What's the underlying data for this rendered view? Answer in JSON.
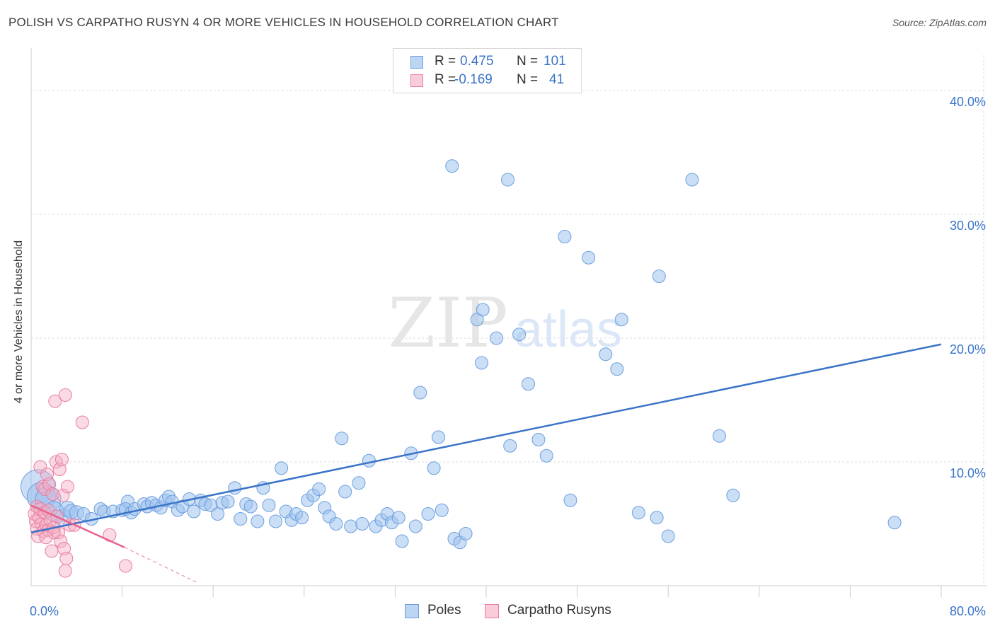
{
  "header": {
    "title": "POLISH VS CARPATHO RUSYN 4 OR MORE VEHICLES IN HOUSEHOLD CORRELATION CHART",
    "source": "Source: ZipAtlas.com"
  },
  "colors": {
    "poles": "#9fc3ee",
    "poles_edge": "#6d9fde",
    "poles_line": "#3a74c8",
    "rusyn": "#f4aec4",
    "rusyn_edge": "#e87ea1",
    "rusyn_line": "#e8628c",
    "value_text": "#3a74c8",
    "grid": "#dddddd"
  },
  "stats": {
    "poles": {
      "r_label": "R =",
      "r_value": "0.475",
      "n_label": "N =",
      "n_value": "101"
    },
    "rusyn": {
      "r_label": "R =",
      "r_value": "-0.169",
      "n_label": "N =",
      "n_value": "41"
    }
  },
  "legend": {
    "poles": "Poles",
    "rusyn": "Carpatho Rusyns"
  },
  "chart_data": {
    "type": "scatter",
    "title": "POLISH VS CARPATHO RUSYN 4 OR MORE VEHICLES IN HOUSEHOLD CORRELATION CHART",
    "xlabel": "",
    "ylabel": "4 or more Vehicles in Household",
    "xlim": [
      0,
      80
    ],
    "ylim": [
      0,
      42
    ],
    "x_tick_labels": [
      "0.0%",
      "80.0%"
    ],
    "y_ticks": [
      10,
      20,
      30,
      40
    ],
    "y_tick_labels": [
      "10.0%",
      "20.0%",
      "30.0%",
      "40.0%"
    ],
    "watermark": {
      "zip": "ZIP",
      "atlas": "atlas"
    },
    "series": [
      {
        "name": "Poles",
        "trend": {
          "x": [
            0,
            80
          ],
          "y": [
            4.3,
            19.5
          ]
        },
        "points": [
          {
            "x": 0.6,
            "y": 8.0,
            "s": 24
          },
          {
            "x": 0.9,
            "y": 7.2,
            "s": 20
          },
          {
            "x": 1.5,
            "y": 7.0,
            "s": 18
          },
          {
            "x": 2.0,
            "y": 6.0,
            "s": 14
          },
          {
            "x": 2.8,
            "y": 5.5,
            "s": 12
          },
          {
            "x": 3.2,
            "y": 6.2,
            "s": 11
          },
          {
            "x": 3.5,
            "y": 6.0,
            "s": 10
          },
          {
            "x": 4.0,
            "y": 5.9,
            "s": 10
          },
          {
            "x": 4.6,
            "y": 5.8,
            "s": 9
          },
          {
            "x": 5.3,
            "y": 5.4,
            "s": 9
          },
          {
            "x": 6.1,
            "y": 6.2,
            "s": 9
          },
          {
            "x": 6.4,
            "y": 6.0,
            "s": 9
          },
          {
            "x": 7.2,
            "y": 6.0,
            "s": 9
          },
          {
            "x": 8.0,
            "y": 6.1,
            "s": 9
          },
          {
            "x": 8.5,
            "y": 6.8,
            "s": 9
          },
          {
            "x": 8.3,
            "y": 6.2,
            "s": 9
          },
          {
            "x": 8.8,
            "y": 5.9,
            "s": 9
          },
          {
            "x": 9.1,
            "y": 6.2,
            "s": 9
          },
          {
            "x": 9.9,
            "y": 6.6,
            "s": 9
          },
          {
            "x": 10.2,
            "y": 6.4,
            "s": 9
          },
          {
            "x": 10.6,
            "y": 6.7,
            "s": 9
          },
          {
            "x": 11.0,
            "y": 6.5,
            "s": 9
          },
          {
            "x": 11.4,
            "y": 6.3,
            "s": 9
          },
          {
            "x": 11.8,
            "y": 6.9,
            "s": 9
          },
          {
            "x": 12.1,
            "y": 7.2,
            "s": 9
          },
          {
            "x": 12.4,
            "y": 6.8,
            "s": 9
          },
          {
            "x": 12.9,
            "y": 6.1,
            "s": 9
          },
          {
            "x": 13.3,
            "y": 6.4,
            "s": 9
          },
          {
            "x": 13.9,
            "y": 7.0,
            "s": 9
          },
          {
            "x": 14.3,
            "y": 6.0,
            "s": 9
          },
          {
            "x": 14.9,
            "y": 6.9,
            "s": 9
          },
          {
            "x": 15.3,
            "y": 6.6,
            "s": 9
          },
          {
            "x": 15.8,
            "y": 6.5,
            "s": 9
          },
          {
            "x": 16.4,
            "y": 5.8,
            "s": 9
          },
          {
            "x": 16.8,
            "y": 6.7,
            "s": 9
          },
          {
            "x": 17.3,
            "y": 6.8,
            "s": 9
          },
          {
            "x": 17.9,
            "y": 7.9,
            "s": 9
          },
          {
            "x": 18.4,
            "y": 5.4,
            "s": 9
          },
          {
            "x": 18.9,
            "y": 6.6,
            "s": 9
          },
          {
            "x": 19.3,
            "y": 6.4,
            "s": 9
          },
          {
            "x": 19.9,
            "y": 5.2,
            "s": 9
          },
          {
            "x": 20.4,
            "y": 7.9,
            "s": 9
          },
          {
            "x": 20.9,
            "y": 6.5,
            "s": 9
          },
          {
            "x": 21.5,
            "y": 5.2,
            "s": 9
          },
          {
            "x": 22.0,
            "y": 9.5,
            "s": 9
          },
          {
            "x": 22.4,
            "y": 6.0,
            "s": 9
          },
          {
            "x": 22.9,
            "y": 5.3,
            "s": 9
          },
          {
            "x": 23.3,
            "y": 5.8,
            "s": 9
          },
          {
            "x": 23.8,
            "y": 5.5,
            "s": 9
          },
          {
            "x": 24.3,
            "y": 6.9,
            "s": 9
          },
          {
            "x": 24.8,
            "y": 7.3,
            "s": 9
          },
          {
            "x": 25.3,
            "y": 7.8,
            "s": 9
          },
          {
            "x": 25.8,
            "y": 6.3,
            "s": 9
          },
          {
            "x": 26.2,
            "y": 5.6,
            "s": 9
          },
          {
            "x": 26.8,
            "y": 5.0,
            "s": 9
          },
          {
            "x": 27.3,
            "y": 11.9,
            "s": 9
          },
          {
            "x": 27.6,
            "y": 7.6,
            "s": 9
          },
          {
            "x": 28.1,
            "y": 4.8,
            "s": 9
          },
          {
            "x": 28.8,
            "y": 8.3,
            "s": 9
          },
          {
            "x": 29.1,
            "y": 5.0,
            "s": 9
          },
          {
            "x": 29.7,
            "y": 10.1,
            "s": 9
          },
          {
            "x": 30.3,
            "y": 4.8,
            "s": 9
          },
          {
            "x": 30.8,
            "y": 5.3,
            "s": 9
          },
          {
            "x": 31.3,
            "y": 5.8,
            "s": 9
          },
          {
            "x": 31.7,
            "y": 5.1,
            "s": 9
          },
          {
            "x": 32.3,
            "y": 5.5,
            "s": 9
          },
          {
            "x": 32.6,
            "y": 3.6,
            "s": 9
          },
          {
            "x": 33.4,
            "y": 10.7,
            "s": 9
          },
          {
            "x": 33.8,
            "y": 4.8,
            "s": 9
          },
          {
            "x": 34.2,
            "y": 15.6,
            "s": 9
          },
          {
            "x": 34.9,
            "y": 5.8,
            "s": 9
          },
          {
            "x": 35.4,
            "y": 9.5,
            "s": 9
          },
          {
            "x": 35.8,
            "y": 12.0,
            "s": 9
          },
          {
            "x": 36.1,
            "y": 6.1,
            "s": 9
          },
          {
            "x": 37.2,
            "y": 3.8,
            "s": 9
          },
          {
            "x": 37.7,
            "y": 3.5,
            "s": 9
          },
          {
            "x": 38.2,
            "y": 4.2,
            "s": 9
          },
          {
            "x": 37.0,
            "y": 33.9,
            "s": 9
          },
          {
            "x": 39.2,
            "y": 21.5,
            "s": 9
          },
          {
            "x": 39.7,
            "y": 22.3,
            "s": 9
          },
          {
            "x": 39.6,
            "y": 18.0,
            "s": 9
          },
          {
            "x": 40.9,
            "y": 20.0,
            "s": 9
          },
          {
            "x": 42.1,
            "y": 11.3,
            "s": 9
          },
          {
            "x": 42.9,
            "y": 20.3,
            "s": 9
          },
          {
            "x": 41.9,
            "y": 32.8,
            "s": 9
          },
          {
            "x": 43.7,
            "y": 16.3,
            "s": 9
          },
          {
            "x": 44.6,
            "y": 11.8,
            "s": 9
          },
          {
            "x": 45.3,
            "y": 10.5,
            "s": 9
          },
          {
            "x": 46.9,
            "y": 28.2,
            "s": 9
          },
          {
            "x": 47.4,
            "y": 6.9,
            "s": 9
          },
          {
            "x": 49.0,
            "y": 26.5,
            "s": 9
          },
          {
            "x": 50.5,
            "y": 18.7,
            "s": 9
          },
          {
            "x": 51.5,
            "y": 17.5,
            "s": 9
          },
          {
            "x": 51.9,
            "y": 21.5,
            "s": 9
          },
          {
            "x": 53.4,
            "y": 5.9,
            "s": 9
          },
          {
            "x": 55.2,
            "y": 25.0,
            "s": 9
          },
          {
            "x": 55.0,
            "y": 5.5,
            "s": 9
          },
          {
            "x": 56.0,
            "y": 4.0,
            "s": 9
          },
          {
            "x": 58.1,
            "y": 32.8,
            "s": 9
          },
          {
            "x": 60.5,
            "y": 12.1,
            "s": 9
          },
          {
            "x": 61.7,
            "y": 7.3,
            "s": 9
          },
          {
            "x": 75.9,
            "y": 5.1,
            "s": 9
          }
        ]
      },
      {
        "name": "Carpatho Rusyns",
        "trend": {
          "x": [
            0,
            8.2
          ],
          "y": [
            6.5,
            3.1
          ]
        },
        "trend_dashed": {
          "x": [
            8.2,
            14.5
          ],
          "y": [
            3.1,
            0.3
          ]
        },
        "points": [
          {
            "x": 0.3,
            "y": 5.8,
            "s": 9
          },
          {
            "x": 0.4,
            "y": 5.2,
            "s": 9
          },
          {
            "x": 0.5,
            "y": 4.6,
            "s": 9
          },
          {
            "x": 0.5,
            "y": 6.4,
            "s": 9
          },
          {
            "x": 0.6,
            "y": 4.0,
            "s": 9
          },
          {
            "x": 0.7,
            "y": 5.5,
            "s": 9
          },
          {
            "x": 0.8,
            "y": 6.2,
            "s": 9
          },
          {
            "x": 0.8,
            "y": 9.6,
            "s": 9
          },
          {
            "x": 0.9,
            "y": 5.0,
            "s": 9
          },
          {
            "x": 1.0,
            "y": 8.0,
            "s": 9
          },
          {
            "x": 1.1,
            "y": 4.4,
            "s": 9
          },
          {
            "x": 1.2,
            "y": 5.9,
            "s": 9
          },
          {
            "x": 1.2,
            "y": 7.8,
            "s": 9
          },
          {
            "x": 1.3,
            "y": 4.9,
            "s": 9
          },
          {
            "x": 1.4,
            "y": 9.0,
            "s": 9
          },
          {
            "x": 1.5,
            "y": 6.1,
            "s": 9
          },
          {
            "x": 1.5,
            "y": 4.5,
            "s": 9
          },
          {
            "x": 1.6,
            "y": 8.2,
            "s": 9
          },
          {
            "x": 1.7,
            "y": 5.3,
            "s": 9
          },
          {
            "x": 1.8,
            "y": 2.8,
            "s": 9
          },
          {
            "x": 1.9,
            "y": 7.4,
            "s": 9
          },
          {
            "x": 2.0,
            "y": 4.7,
            "s": 9
          },
          {
            "x": 2.1,
            "y": 14.9,
            "s": 9
          },
          {
            "x": 2.2,
            "y": 10.0,
            "s": 9
          },
          {
            "x": 2.3,
            "y": 5.6,
            "s": 9
          },
          {
            "x": 2.4,
            "y": 4.3,
            "s": 9
          },
          {
            "x": 2.5,
            "y": 9.4,
            "s": 9
          },
          {
            "x": 2.6,
            "y": 3.6,
            "s": 9
          },
          {
            "x": 2.7,
            "y": 10.2,
            "s": 9
          },
          {
            "x": 2.8,
            "y": 7.3,
            "s": 9
          },
          {
            "x": 2.9,
            "y": 3.0,
            "s": 9
          },
          {
            "x": 3.0,
            "y": 1.2,
            "s": 9
          },
          {
            "x": 3.1,
            "y": 2.2,
            "s": 9
          },
          {
            "x": 3.2,
            "y": 8.0,
            "s": 9
          },
          {
            "x": 2.0,
            "y": 4.3,
            "s": 9
          },
          {
            "x": 1.3,
            "y": 3.9,
            "s": 9
          },
          {
            "x": 3.4,
            "y": 4.9,
            "s": 9
          },
          {
            "x": 3.8,
            "y": 4.9,
            "s": 9
          },
          {
            "x": 3.0,
            "y": 15.4,
            "s": 9
          },
          {
            "x": 4.5,
            "y": 13.2,
            "s": 9
          },
          {
            "x": 6.9,
            "y": 4.1,
            "s": 9
          },
          {
            "x": 8.3,
            "y": 1.6,
            "s": 9
          }
        ]
      }
    ]
  }
}
